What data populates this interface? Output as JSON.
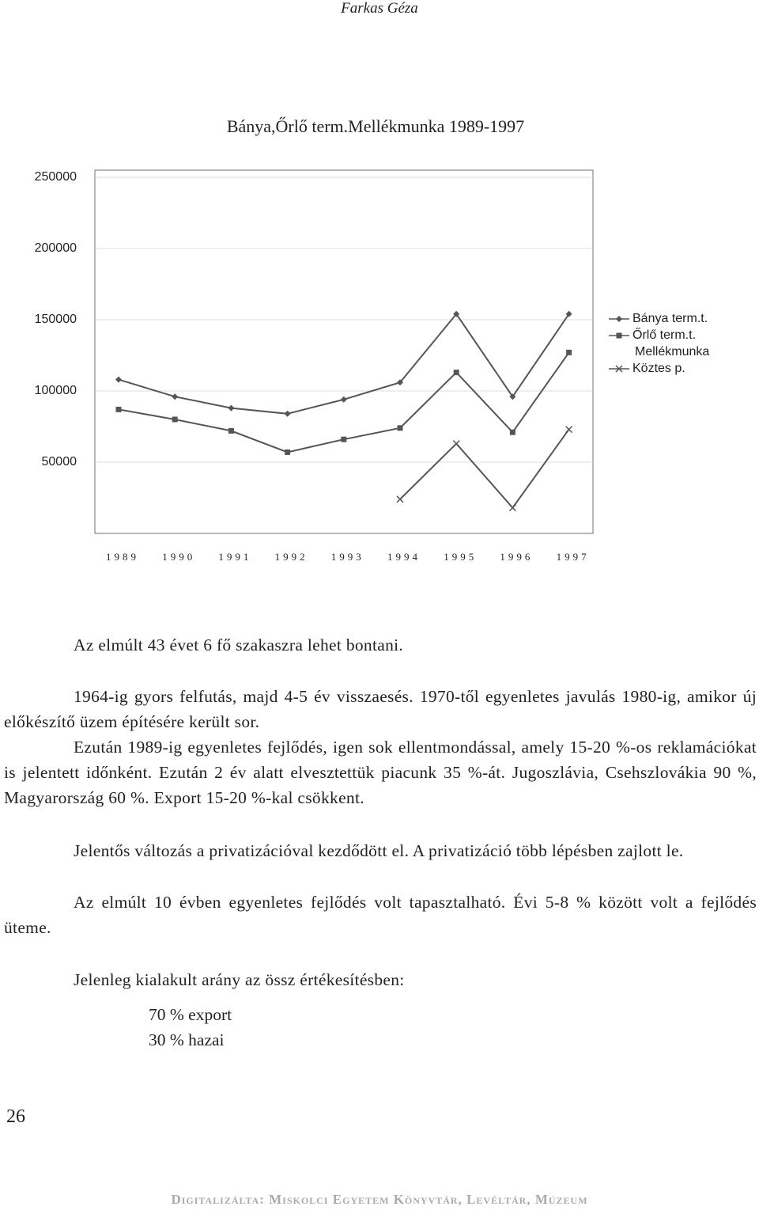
{
  "header": {
    "author": "Farkas Géza"
  },
  "chart_data": {
    "type": "line",
    "title": "Bánya,Őrlő term.Mellékmunka 1989-1997",
    "categories": [
      "1989",
      "1990",
      "1991",
      "1992",
      "1993",
      "1994",
      "1995",
      "1996",
      "1997"
    ],
    "series": [
      {
        "name": "Bánya term.t.",
        "color": "#555555",
        "marker": "diamond",
        "values": [
          108000,
          96000,
          88000,
          84000,
          94000,
          106000,
          154000,
          96000,
          154000
        ]
      },
      {
        "name": "Őrlő term.t.",
        "color": "#555555",
        "marker": "square",
        "values": [
          87000,
          80000,
          72000,
          57000,
          66000,
          74000,
          113000,
          71000,
          127000
        ]
      },
      {
        "name": "Mellékmunka",
        "color": "#555555",
        "marker": "none",
        "values": [
          null,
          null,
          null,
          null,
          null,
          null,
          null,
          null,
          null
        ]
      },
      {
        "name": "Köztes p.",
        "color": "#555555",
        "marker": "x",
        "values": [
          null,
          null,
          null,
          null,
          null,
          24000,
          63000,
          18000,
          73000
        ]
      }
    ],
    "ylim": [
      0,
      250000
    ],
    "yticks": [
      50000,
      100000,
      150000,
      200000,
      250000
    ],
    "grid": true,
    "legend": "right"
  },
  "paragraphs": [
    "Az elmúlt 43 évet 6 fő szakaszra lehet bontani.",
    "1964-ig gyors felfutás, majd 4-5 év visszaesés. 1970-től egyenletes javulás 1980-ig, amikor új előkészítő üzem építésére került sor.",
    "Ezután 1989-ig egyenletes fejlődés, igen sok ellentmondással, amely 15-20 %-os reklamációkat is jelentett időnként. Ezután 2 év alatt elvesztettük piacunk 35 %-át. Jugoszlávia, Csehszlovákia 90 %, Magyarország 60 %. Export 15-20 %-kal csökkent.",
    "Jelentős változás a privatizációval kezdődött el. A privatizáció több lépésben zajlott le.",
    "Az elmúlt 10 évben egyenletes fejlődés volt tapasztalható. Évi 5-8 % között volt a fejlődés üteme.",
    "Jelenleg kialakult arány az össz értékesítésben:"
  ],
  "list": [
    "70 % export",
    "30 % hazai"
  ],
  "page_number": "26",
  "footer": "Digitalizálta: Miskolci Egyetem Könyvtár, Levéltár, Múzeum"
}
